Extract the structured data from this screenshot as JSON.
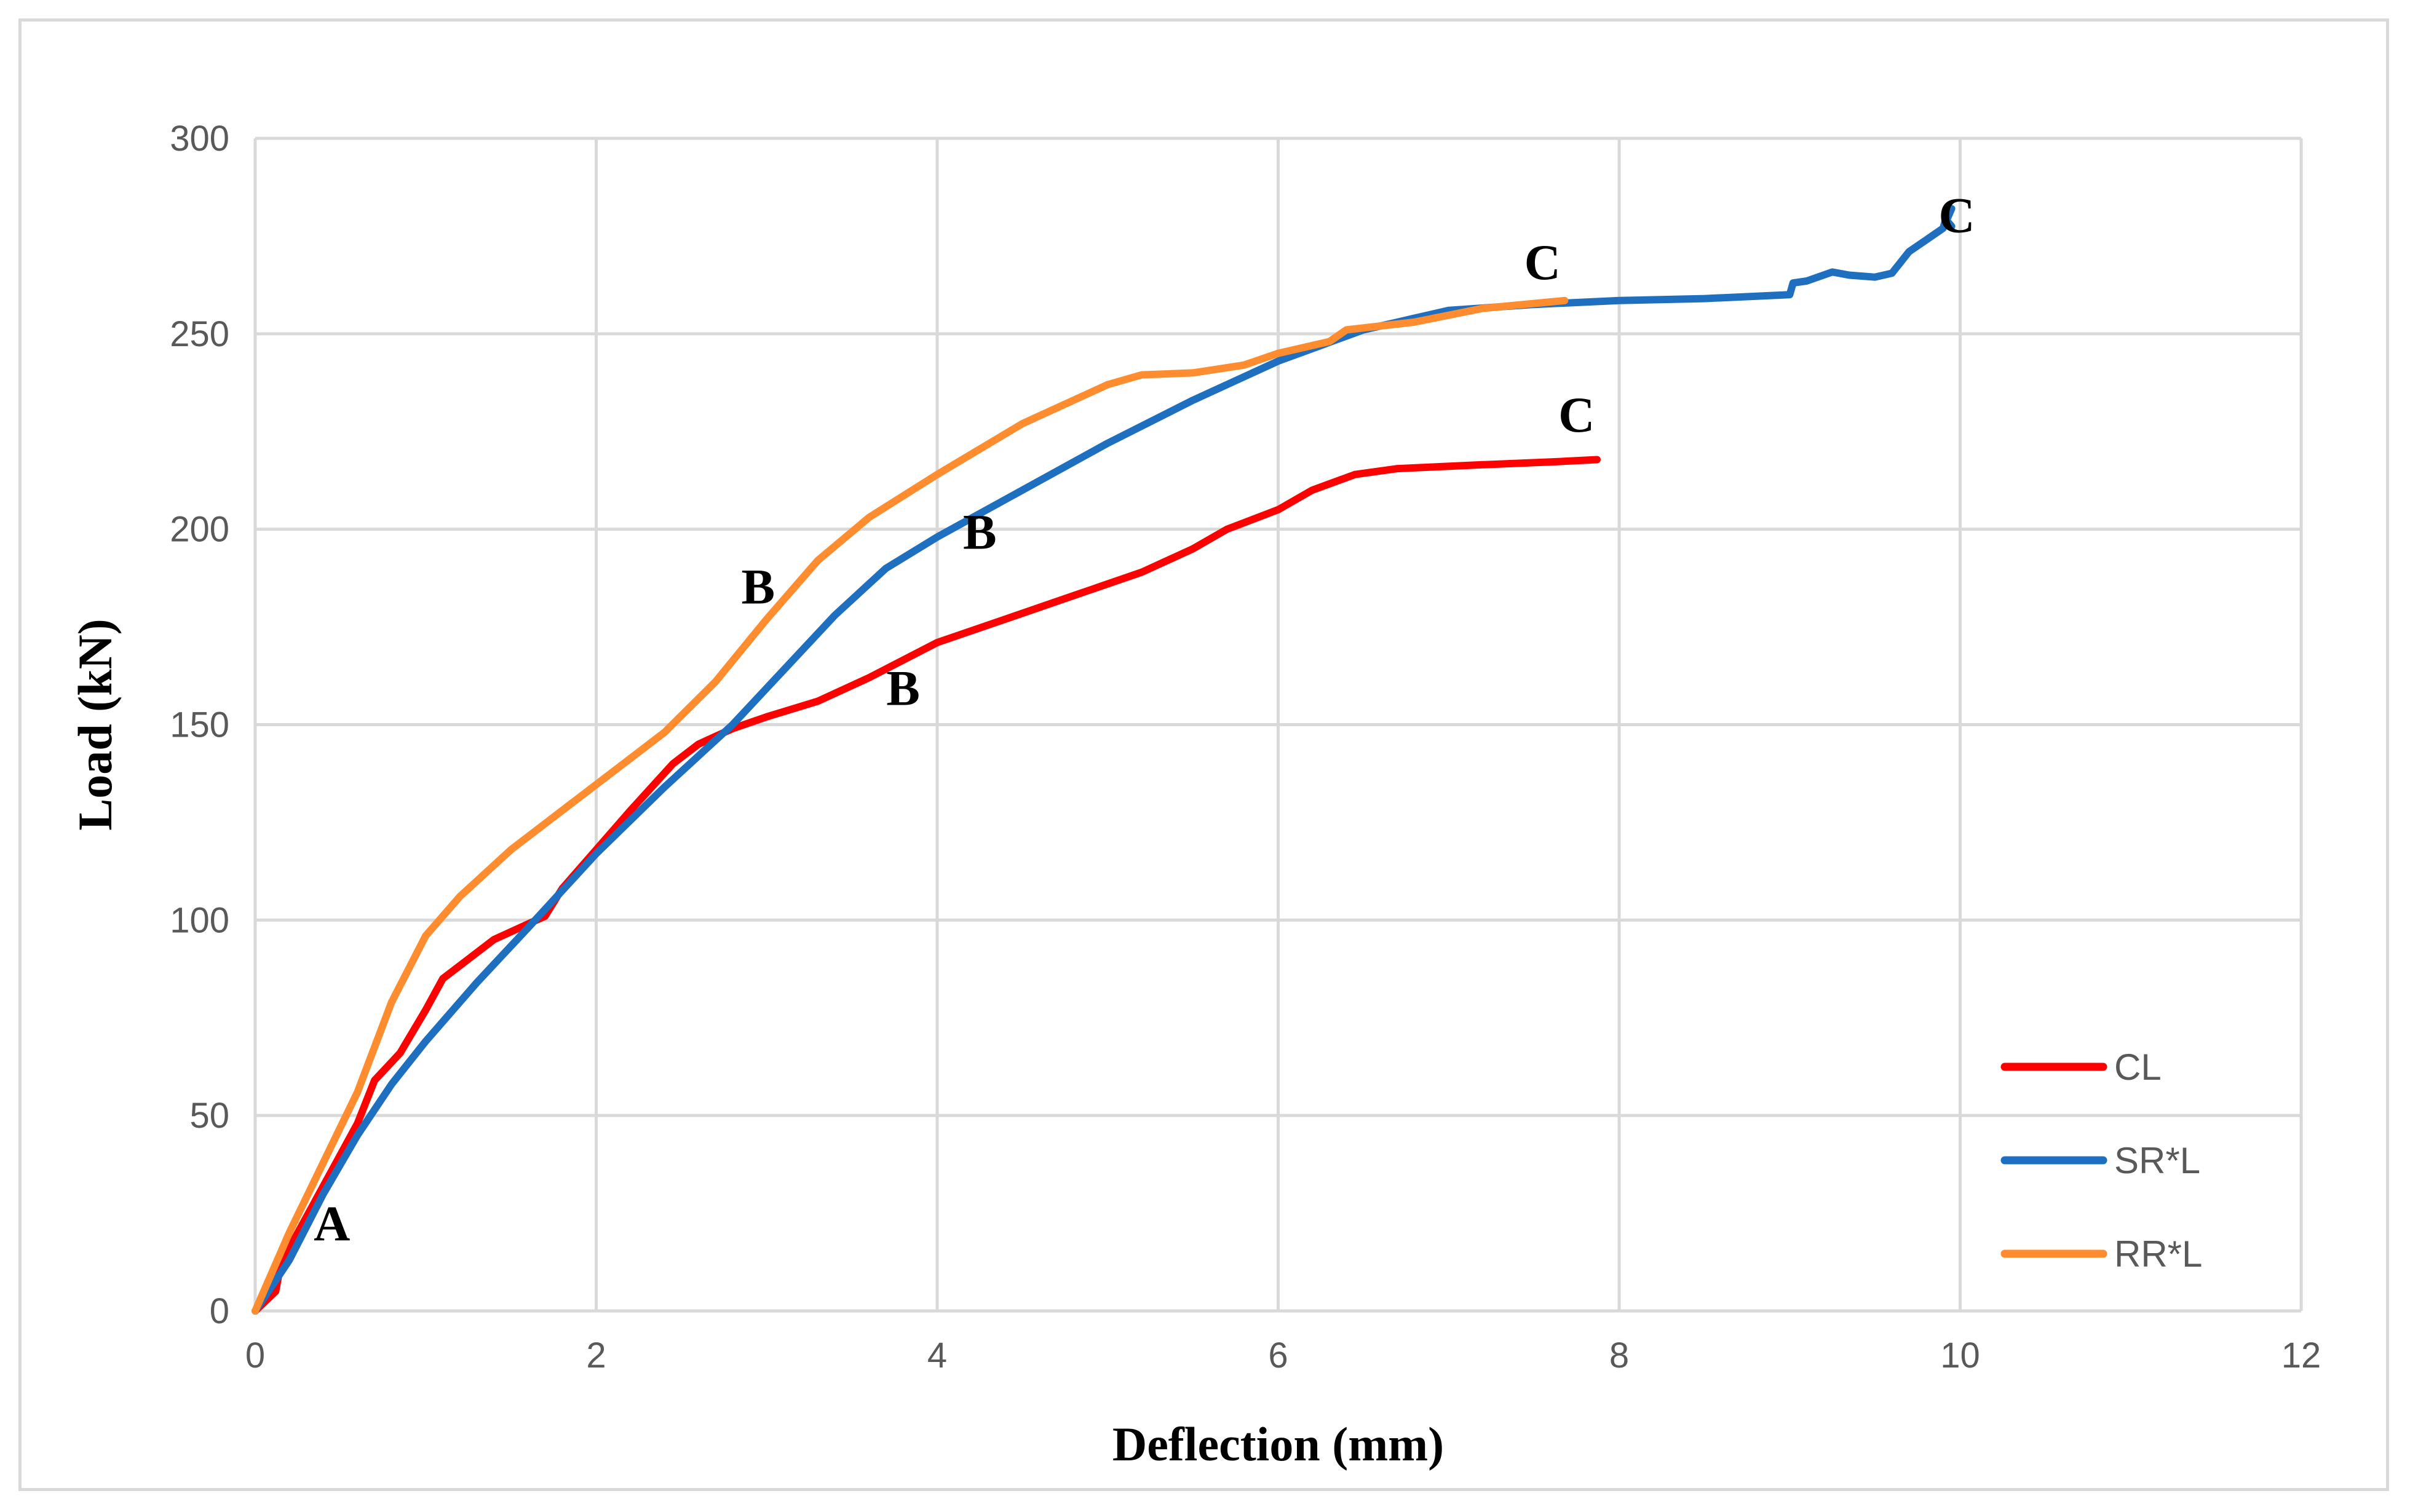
{
  "chart_data": {
    "type": "line",
    "title": "",
    "xlabel": "Deflection (mm)",
    "ylabel": "Load (kN)",
    "xlim": [
      0,
      12
    ],
    "ylim": [
      0,
      300
    ],
    "xticks": [
      0,
      2,
      4,
      6,
      8,
      10,
      12
    ],
    "yticks": [
      0,
      50,
      100,
      150,
      200,
      250,
      300
    ],
    "grid": true,
    "legend_position": "bottom-right",
    "series": [
      {
        "name": "CL",
        "color": "#ff0000",
        "points": [
          [
            0,
            0
          ],
          [
            0.12,
            5
          ],
          [
            0.15,
            12
          ],
          [
            0.3,
            24
          ],
          [
            0.45,
            36
          ],
          [
            0.6,
            48
          ],
          [
            0.7,
            59
          ],
          [
            0.85,
            66
          ],
          [
            1.0,
            77
          ],
          [
            1.1,
            85
          ],
          [
            1.25,
            90
          ],
          [
            1.4,
            95
          ],
          [
            1.6,
            99
          ],
          [
            1.7,
            101
          ],
          [
            1.8,
            108
          ],
          [
            2.0,
            118
          ],
          [
            2.2,
            128
          ],
          [
            2.45,
            140
          ],
          [
            2.6,
            145
          ],
          [
            2.8,
            149
          ],
          [
            3.0,
            152
          ],
          [
            3.3,
            156
          ],
          [
            3.6,
            162
          ],
          [
            4.0,
            171
          ],
          [
            4.4,
            177
          ],
          [
            4.8,
            183
          ],
          [
            5.2,
            189
          ],
          [
            5.5,
            195
          ],
          [
            5.7,
            200
          ],
          [
            6.0,
            205
          ],
          [
            6.2,
            210
          ],
          [
            6.45,
            214
          ],
          [
            6.7,
            215.5
          ],
          [
            7.2,
            216.5
          ],
          [
            7.6,
            217.2
          ],
          [
            7.87,
            217.8
          ]
        ]
      },
      {
        "name": "SR*L",
        "color": "#1f6fc0",
        "points": [
          [
            0,
            0
          ],
          [
            0.2,
            13
          ],
          [
            0.4,
            30
          ],
          [
            0.6,
            45
          ],
          [
            0.8,
            58
          ],
          [
            1.0,
            69
          ],
          [
            1.3,
            84
          ],
          [
            1.6,
            98
          ],
          [
            2.0,
            117
          ],
          [
            2.4,
            134
          ],
          [
            2.8,
            150
          ],
          [
            3.1,
            164
          ],
          [
            3.4,
            178
          ],
          [
            3.7,
            190
          ],
          [
            4.0,
            198
          ],
          [
            4.5,
            210
          ],
          [
            5.0,
            222
          ],
          [
            5.5,
            233
          ],
          [
            6.0,
            243
          ],
          [
            6.5,
            251
          ],
          [
            7.0,
            256
          ],
          [
            7.5,
            257.5
          ],
          [
            8.0,
            258.5
          ],
          [
            8.5,
            259
          ],
          [
            9.0,
            260
          ],
          [
            9.02,
            263
          ],
          [
            9.1,
            263.5
          ],
          [
            9.25,
            265.8
          ],
          [
            9.35,
            265
          ],
          [
            9.5,
            264.5
          ],
          [
            9.6,
            265.5
          ],
          [
            9.7,
            271
          ],
          [
            9.8,
            274
          ],
          [
            9.9,
            277
          ],
          [
            9.92,
            280
          ],
          [
            9.95,
            282
          ],
          [
            9.92,
            279
          ],
          [
            9.95,
            277.5
          ]
        ]
      },
      {
        "name": "RR*L",
        "color": "#ff8c2e",
        "points": [
          [
            0,
            0
          ],
          [
            0.2,
            20
          ],
          [
            0.4,
            38
          ],
          [
            0.6,
            56
          ],
          [
            0.8,
            79
          ],
          [
            1.0,
            96
          ],
          [
            1.2,
            106
          ],
          [
            1.5,
            118
          ],
          [
            1.8,
            128
          ],
          [
            2.1,
            138
          ],
          [
            2.4,
            148
          ],
          [
            2.7,
            161
          ],
          [
            3.0,
            177
          ],
          [
            3.3,
            192
          ],
          [
            3.6,
            203
          ],
          [
            4.0,
            214
          ],
          [
            4.5,
            227
          ],
          [
            5.0,
            237
          ],
          [
            5.2,
            239.5
          ],
          [
            5.5,
            240
          ],
          [
            5.8,
            242
          ],
          [
            6.0,
            245
          ],
          [
            6.3,
            248
          ],
          [
            6.4,
            251
          ],
          [
            6.8,
            253
          ],
          [
            7.2,
            256.5
          ],
          [
            7.68,
            258.5
          ]
        ]
      }
    ],
    "annotations": [
      {
        "text": "A",
        "x": 0.45,
        "y": 18
      },
      {
        "text": "B",
        "x": 2.95,
        "y": 181
      },
      {
        "text": "B",
        "x": 4.25,
        "y": 195
      },
      {
        "text": "B",
        "x": 3.8,
        "y": 155
      },
      {
        "text": "C",
        "x": 7.55,
        "y": 264
      },
      {
        "text": "C",
        "x": 9.98,
        "y": 276
      },
      {
        "text": "C",
        "x": 7.75,
        "y": 225
      }
    ]
  }
}
